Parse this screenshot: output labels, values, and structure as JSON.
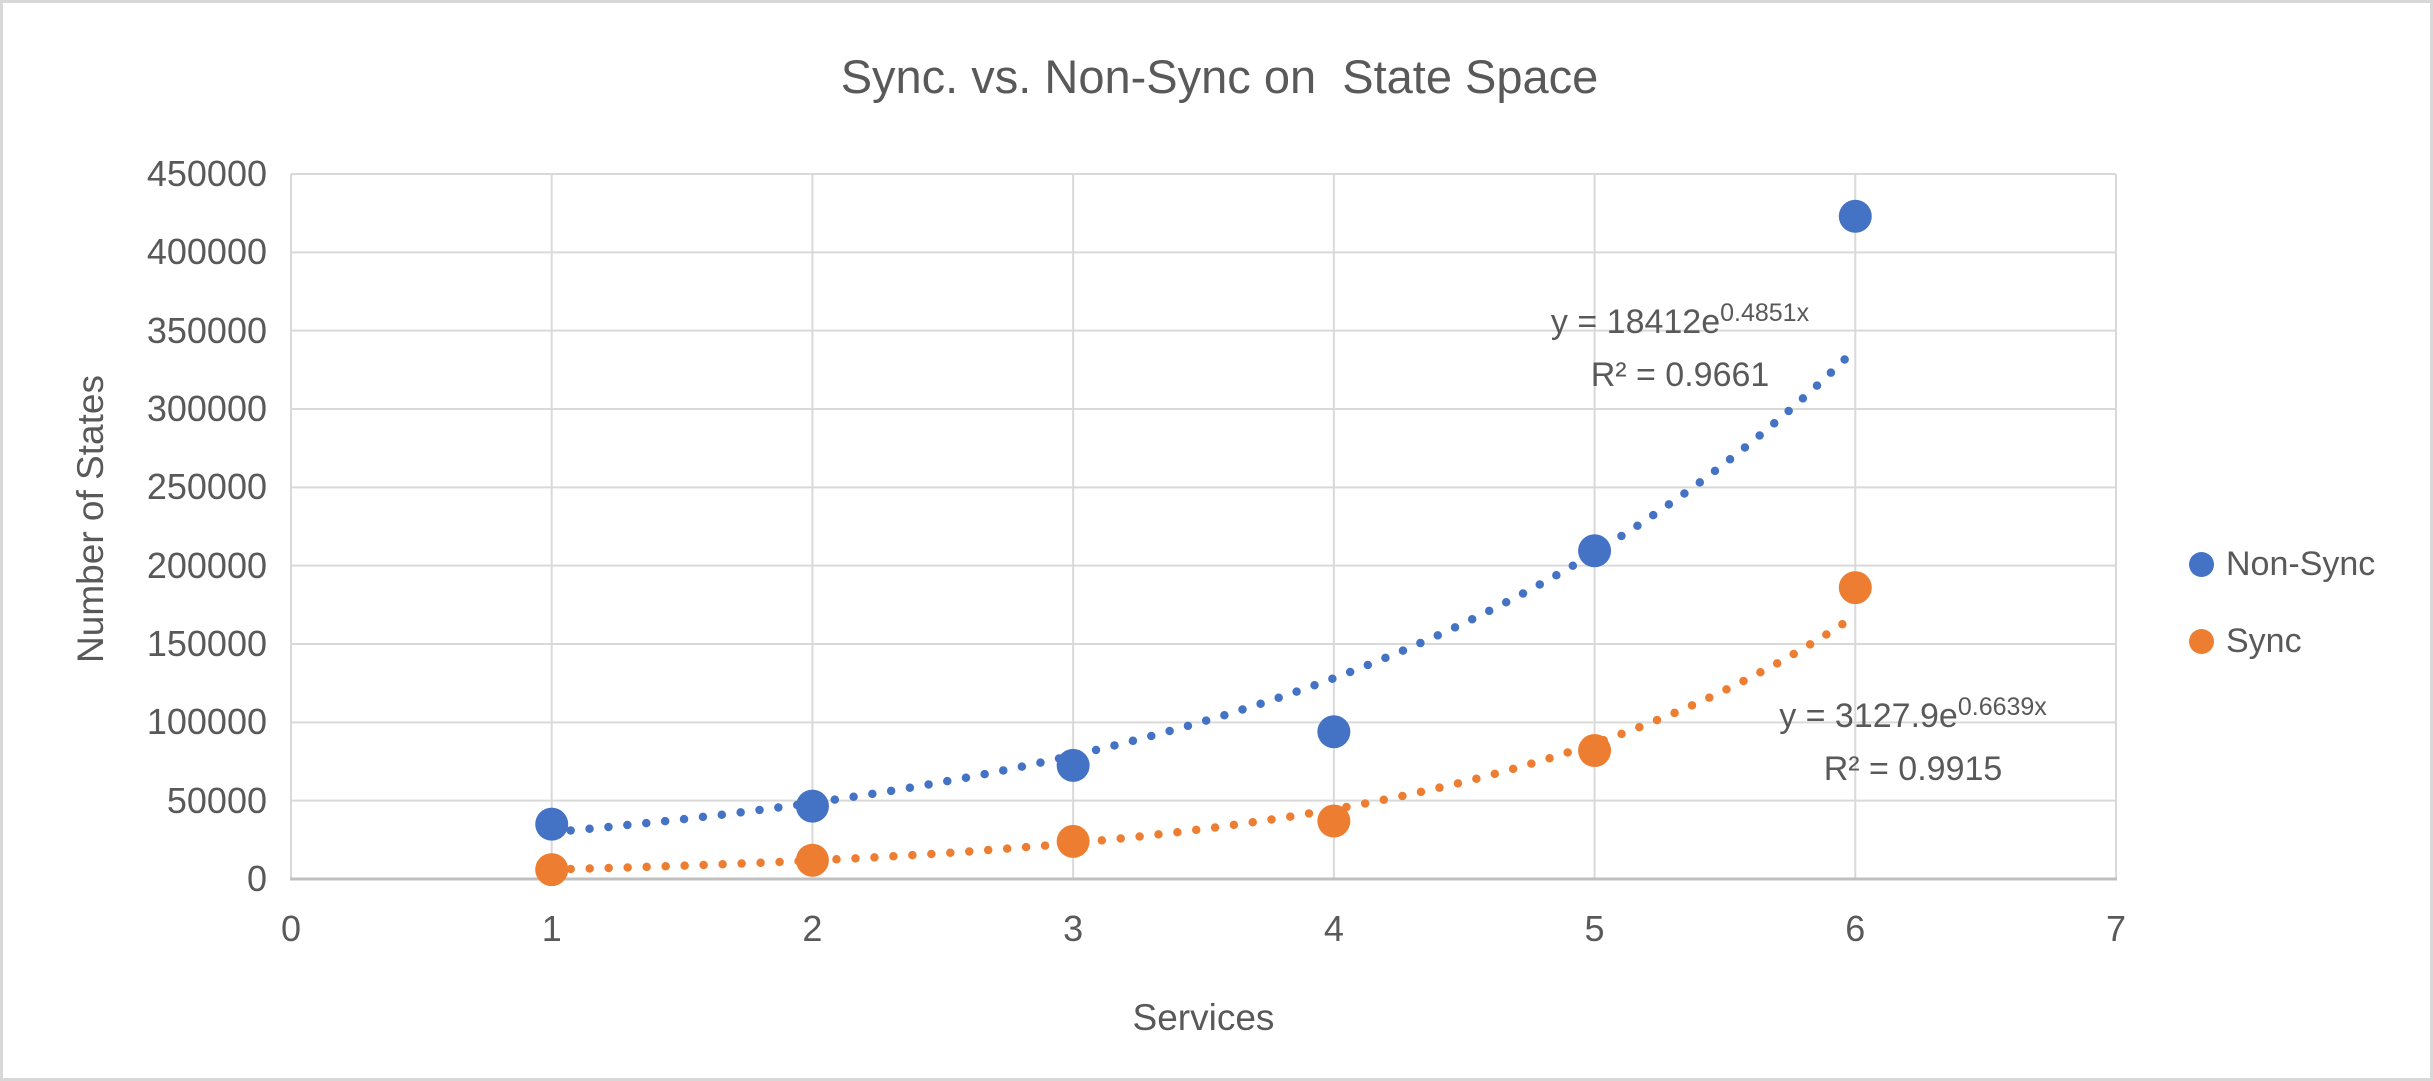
{
  "colors": {
    "non_sync": "#4472C4",
    "sync": "#ED7D31",
    "gridline": "#D9D9D9",
    "axis_line": "#BFBFBF",
    "text": "#595959",
    "frame_border": "#D8D8D8"
  },
  "chart_data": {
    "type": "scatter",
    "title": "Sync. vs. Non-Sync on  State Space",
    "xlabel": "Services",
    "ylabel": "Number of States",
    "xlim": [
      0,
      7
    ],
    "ylim": [
      0,
      450000
    ],
    "x_ticks": [
      0,
      1,
      2,
      3,
      4,
      5,
      6,
      7
    ],
    "y_ticks": [
      0,
      50000,
      100000,
      150000,
      200000,
      250000,
      300000,
      350000,
      400000,
      450000
    ],
    "grid": true,
    "legend_position": "right",
    "x": [
      1,
      2,
      3,
      4,
      5,
      6
    ],
    "series": [
      {
        "name": "Non-Sync",
        "color": "#4472C4",
        "values": [
          35000,
          46500,
          72500,
          94000,
          209500,
          423000
        ],
        "trendline": {
          "type": "exponential",
          "a": 18412,
          "b": 0.4851,
          "equation_base": "y = 18412e",
          "equation_exponent": "0.4851x",
          "r_squared": "R² = 0.9661"
        }
      },
      {
        "name": "Sync",
        "color": "#ED7D31",
        "values": [
          6000,
          12000,
          24000,
          37000,
          82000,
          186000
        ],
        "trendline": {
          "type": "exponential",
          "a": 3127.9,
          "b": 0.6639,
          "equation_base": "y = 3127.9e",
          "equation_exponent": "0.6639x",
          "r_squared": "R² = 0.9915"
        }
      }
    ]
  }
}
